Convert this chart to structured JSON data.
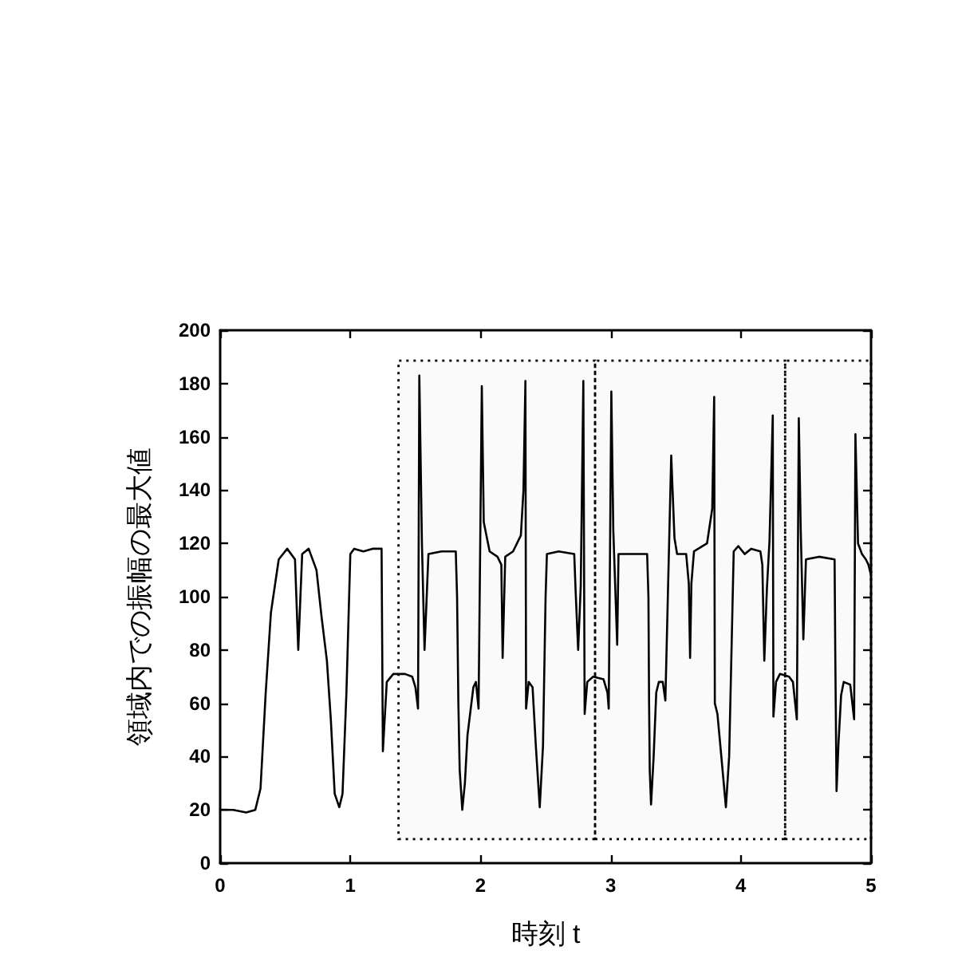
{
  "chart_data": {
    "type": "line",
    "xlabel": "時刻 t",
    "ylabel": "領域内での振幅の最大値",
    "color": "#000000",
    "line_style": "solid",
    "x": [
      0,
      0.1,
      0.2,
      0.27,
      0.31,
      0.35,
      0.39,
      0.45,
      0.515,
      0.575,
      0.6,
      0.63,
      0.68,
      0.74,
      0.78,
      0.82,
      0.85,
      0.88,
      0.915,
      0.94,
      0.97,
      1.0,
      1.03,
      1.1,
      1.17,
      1.24,
      1.25,
      1.28,
      1.33,
      1.42,
      1.475,
      1.5,
      1.52,
      1.53,
      1.55,
      1.57,
      1.6,
      1.7,
      1.81,
      1.82,
      1.83,
      1.84,
      1.86,
      1.88,
      1.9,
      1.945,
      1.965,
      1.985,
      2.01,
      2.025,
      2.07,
      2.13,
      2.16,
      2.17,
      2.19,
      2.25,
      2.31,
      2.33,
      2.345,
      2.35,
      2.37,
      2.4,
      2.425,
      2.455,
      2.48,
      2.5,
      2.51,
      2.6,
      2.72,
      2.73,
      2.75,
      2.77,
      2.79,
      2.8,
      2.82,
      2.865,
      2.945,
      2.975,
      2.985,
      3.005,
      3.02,
      3.05,
      3.06,
      3.17,
      3.28,
      3.29,
      3.295,
      3.3,
      3.31,
      3.33,
      3.35,
      3.37,
      3.4,
      3.42,
      3.465,
      3.49,
      3.51,
      3.58,
      3.6,
      3.61,
      3.62,
      3.64,
      3.74,
      3.78,
      3.795,
      3.8,
      3.82,
      3.85,
      3.885,
      3.91,
      3.93,
      3.945,
      3.98,
      4.03,
      4.08,
      4.15,
      4.165,
      4.18,
      4.2,
      4.22,
      4.245,
      4.25,
      4.27,
      4.3,
      4.37,
      4.4,
      4.43,
      4.445,
      4.46,
      4.48,
      4.5,
      4.6,
      4.72,
      4.725,
      4.735,
      4.75,
      4.77,
      4.79,
      4.84,
      4.87,
      4.88,
      4.9,
      4.93,
      4.96,
      4.98,
      5.0
    ],
    "values": [
      20,
      20,
      19,
      20,
      28,
      64,
      94,
      114,
      118,
      114,
      80,
      116,
      118,
      110,
      92,
      76,
      54,
      26,
      21,
      26,
      64,
      116,
      118,
      117,
      118,
      118,
      42,
      68,
      71,
      71,
      70,
      66,
      58,
      183,
      120,
      80,
      116,
      117,
      117,
      100,
      60,
      35,
      20,
      30,
      48,
      66,
      68,
      58,
      179,
      128,
      117,
      115,
      112,
      77,
      115,
      117,
      123,
      140,
      181,
      58,
      68,
      66,
      44,
      21,
      44,
      100,
      116,
      117,
      116,
      103,
      80,
      104,
      181,
      56,
      68,
      70,
      69,
      64,
      58,
      177,
      125,
      82,
      116,
      116,
      116,
      100,
      60,
      35,
      22,
      40,
      64,
      68,
      68,
      61,
      153,
      122,
      116,
      116,
      105,
      77,
      105,
      117,
      120,
      133,
      175,
      60,
      56,
      40,
      21,
      40,
      84,
      117,
      119,
      116,
      118,
      117,
      112,
      76,
      103,
      121,
      168,
      55,
      68,
      71,
      70,
      68,
      54,
      167,
      125,
      84,
      114,
      115,
      114,
      80,
      27,
      45,
      63,
      68,
      67,
      54,
      161,
      120,
      116,
      114,
      112,
      108
    ],
    "xlim": [
      0,
      5
    ],
    "xticks": [
      0,
      1,
      2,
      3,
      4,
      5
    ],
    "ylim": [
      0,
      200
    ],
    "yticks": [
      0,
      20,
      40,
      60,
      80,
      100,
      120,
      140,
      160,
      180,
      200
    ],
    "bands": [
      {
        "axis": "x",
        "from": 1.37,
        "to": 2.88
      },
      {
        "axis": "x",
        "from": 2.88,
        "to": 4.34
      },
      {
        "axis": "x",
        "from": 4.34,
        "to": 5.0
      }
    ]
  }
}
